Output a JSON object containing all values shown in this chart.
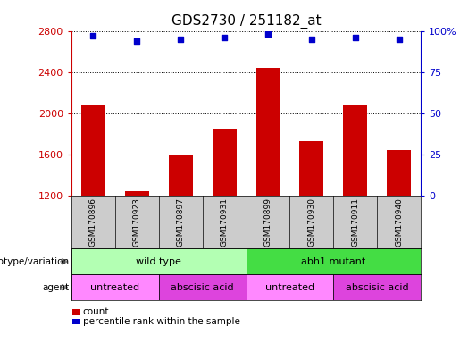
{
  "title": "GDS2730 / 251182_at",
  "samples": [
    "GSM170896",
    "GSM170923",
    "GSM170897",
    "GSM170931",
    "GSM170899",
    "GSM170930",
    "GSM170911",
    "GSM170940"
  ],
  "counts": [
    2080,
    1240,
    1590,
    1850,
    2440,
    1730,
    2080,
    1640
  ],
  "percentile_ranks": [
    97,
    94,
    95,
    96,
    98,
    95,
    96,
    95
  ],
  "ylim_left": [
    1200,
    2800
  ],
  "ylim_right": [
    0,
    100
  ],
  "yticks_left": [
    1200,
    1600,
    2000,
    2400,
    2800
  ],
  "yticks_right": [
    0,
    25,
    50,
    75,
    100
  ],
  "bar_color": "#cc0000",
  "dot_color": "#0000cc",
  "bar_bottom": 1200,
  "genotype_groups": [
    {
      "label": "wild type",
      "span": [
        0,
        4
      ],
      "color": "#b3ffb3"
    },
    {
      "label": "abh1 mutant",
      "span": [
        4,
        8
      ],
      "color": "#44dd44"
    }
  ],
  "agent_groups": [
    {
      "label": "untreated",
      "span": [
        0,
        2
      ],
      "color": "#ff88ff"
    },
    {
      "label": "abscisic acid",
      "span": [
        2,
        4
      ],
      "color": "#dd44dd"
    },
    {
      "label": "untreated",
      "span": [
        4,
        6
      ],
      "color": "#ff88ff"
    },
    {
      "label": "abscisic acid",
      "span": [
        6,
        8
      ],
      "color": "#dd44dd"
    }
  ],
  "legend_count_color": "#cc0000",
  "legend_dot_color": "#0000cc",
  "background_color": "#ffffff",
  "tick_label_row_color": "#cccccc",
  "title_fontsize": 11,
  "label_fontsize": 8,
  "sample_fontsize": 6.5,
  "row_fontsize": 8
}
